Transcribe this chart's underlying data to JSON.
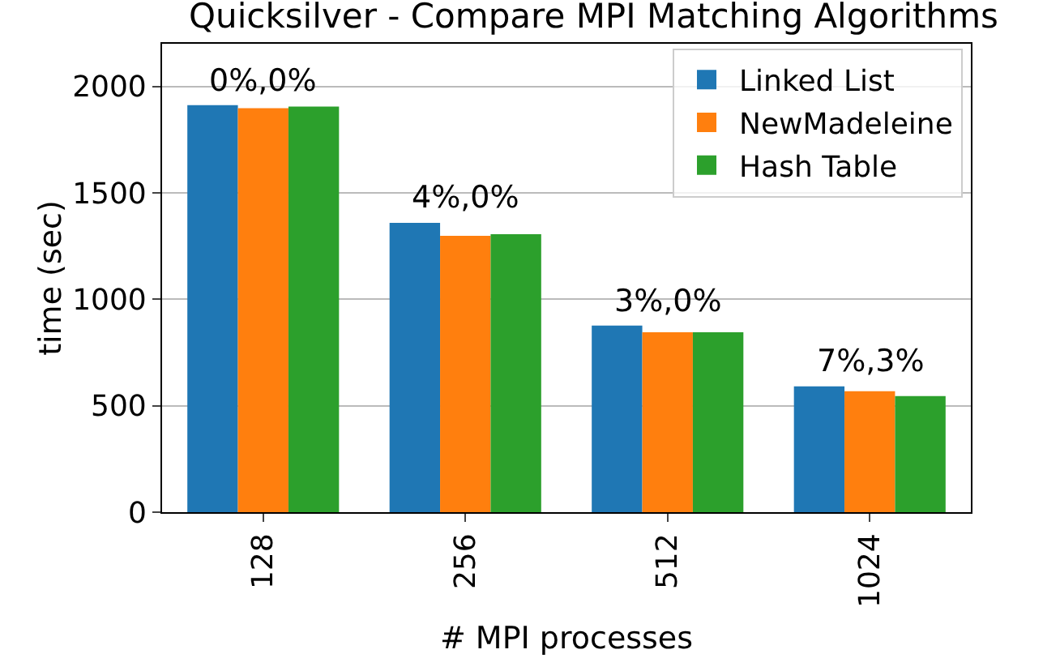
{
  "chart_data": {
    "type": "bar",
    "title": "Quicksilver - Compare MPI Matching Algorithms",
    "xlabel": "# MPI processes",
    "ylabel": "time (sec)",
    "categories": [
      "128",
      "256",
      "512",
      "1024"
    ],
    "series": [
      {
        "name": "Linked List",
        "color": "#1f77b4",
        "values": [
          1912,
          1359,
          876,
          591
        ]
      },
      {
        "name": "NewMadeleine",
        "color": "#ff7f0e",
        "values": [
          1897,
          1298,
          845,
          568
        ]
      },
      {
        "name": "Hash Table",
        "color": "#2ca02c",
        "values": [
          1905,
          1306,
          845,
          545
        ]
      }
    ],
    "ylim": [
      0,
      2200
    ],
    "yticks": [
      0,
      500,
      1000,
      1500,
      2000
    ],
    "grid": "y",
    "legend": "top right",
    "annotations": [
      "0%,0%",
      "4%,0%",
      "3%,0%",
      "7%,3%"
    ]
  }
}
